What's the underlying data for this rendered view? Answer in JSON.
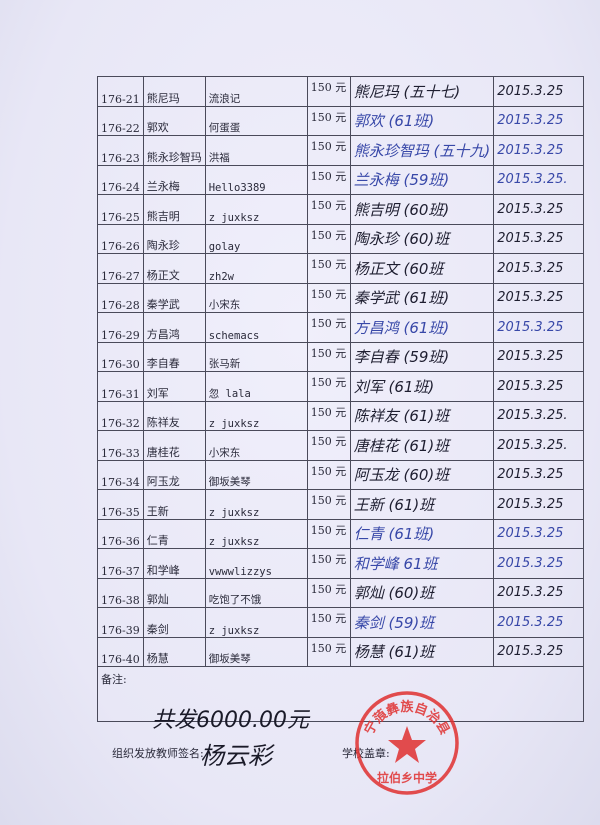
{
  "table": {
    "rows": [
      {
        "id": "176-21",
        "name": "熊尼玛",
        "nick": "流浪记",
        "amount": "150 元",
        "signature": "熊尼玛 (五十七)",
        "date": "2015.3.25",
        "ink": "black"
      },
      {
        "id": "176-22",
        "name": "郭欢",
        "nick": "何蛋蛋",
        "amount": "150 元",
        "signature": "郭欢 (61班)",
        "date": "2015.3.25",
        "ink": "blue"
      },
      {
        "id": "176-23",
        "name": "熊永珍智玛",
        "nick": "洪福",
        "amount": "150 元",
        "signature": "熊永珍智玛 (五十九)",
        "date": "2015.3.25",
        "ink": "blue"
      },
      {
        "id": "176-24",
        "name": "兰永梅",
        "nick": "Hello3389",
        "amount": "150 元",
        "signature": "兰永梅 (59班)",
        "date": "2015.3.25.",
        "ink": "blue"
      },
      {
        "id": "176-25",
        "name": "熊吉明",
        "nick": "z juxksz",
        "amount": "150 元",
        "signature": "熊吉明 (60班)",
        "date": "2015.3.25",
        "ink": "black"
      },
      {
        "id": "176-26",
        "name": "陶永珍",
        "nick": "golay",
        "amount": "150 元",
        "signature": "陶永珍 (60)班",
        "date": "2015.3.25",
        "ink": "black"
      },
      {
        "id": "176-27",
        "name": "杨正文",
        "nick": "zh2w",
        "amount": "150 元",
        "signature": "杨正文 (60班",
        "date": "2015.3.25",
        "ink": "black"
      },
      {
        "id": "176-28",
        "name": "秦学武",
        "nick": "小宋东",
        "amount": "150 元",
        "signature": "秦学武 (61班)",
        "date": "2015.3.25",
        "ink": "black"
      },
      {
        "id": "176-29",
        "name": "方昌鸿",
        "nick": "schemacs",
        "amount": "150 元",
        "signature": "方昌鸿 (61班)",
        "date": "2015.3.25",
        "ink": "blue"
      },
      {
        "id": "176-30",
        "name": "李自春",
        "nick": "张马新",
        "amount": "150 元",
        "signature": "李自春 (59班)",
        "date": "2015.3.25",
        "ink": "black"
      },
      {
        "id": "176-31",
        "name": "刘军",
        "nick": "忽 lala",
        "amount": "150 元",
        "signature": "刘军 (61班)",
        "date": "2015.3.25",
        "ink": "black"
      },
      {
        "id": "176-32",
        "name": "陈祥友",
        "nick": "z juxksz",
        "amount": "150 元",
        "signature": "陈祥友 (61)班",
        "date": "2015.3.25.",
        "ink": "black"
      },
      {
        "id": "176-33",
        "name": "唐桂花",
        "nick": "小宋东",
        "amount": "150 元",
        "signature": "唐桂花 (61)班",
        "date": "2015.3.25.",
        "ink": "black"
      },
      {
        "id": "176-34",
        "name": "阿玉龙",
        "nick": "御坂美琴",
        "amount": "150 元",
        "signature": "阿玉龙 (60)班",
        "date": "2015.3.25",
        "ink": "black"
      },
      {
        "id": "176-35",
        "name": "王新",
        "nick": "z juxksz",
        "amount": "150 元",
        "signature": "王新 (61)班",
        "date": "2015.3.25",
        "ink": "black"
      },
      {
        "id": "176-36",
        "name": "仁青",
        "nick": "z juxksz",
        "amount": "150 元",
        "signature": "仁青 (61班)",
        "date": "2015.3.25",
        "ink": "blue"
      },
      {
        "id": "176-37",
        "name": "和学峰",
        "nick": "vwwwlizzys",
        "amount": "150 元",
        "signature": "和学峰 61班",
        "date": "2015.3.25",
        "ink": "blue"
      },
      {
        "id": "176-38",
        "name": "郭灿",
        "nick": "吃饱了不饿",
        "amount": "150 元",
        "signature": "郭灿 (60)班",
        "date": "2015.3.25",
        "ink": "black"
      },
      {
        "id": "176-39",
        "name": "秦剑",
        "nick": "z juxksz",
        "amount": "150 元",
        "signature": "秦剑 (59)班",
        "date": "2015.3.25",
        "ink": "blue"
      },
      {
        "id": "176-40",
        "name": "杨慧",
        "nick": "御坂美琴",
        "amount": "150 元",
        "signature": "杨慧 (61)班",
        "date": "2015.3.25",
        "ink": "black"
      }
    ],
    "remark_label": "备注:",
    "remark_handwritten": "共发6000.00元"
  },
  "footer": {
    "teacher_label": "组织发放教师签名:",
    "teacher_signature": "杨云彩",
    "seal_label": "学校盖章:"
  },
  "stamp": {
    "text_top": "宁蒗彝族自治县",
    "text_bottom": "拉伯乡中学",
    "color": "#e03030"
  },
  "colors": {
    "blue_ink": "#3848a8",
    "black_ink": "#1e1e30",
    "paper": "#ecebf8"
  }
}
